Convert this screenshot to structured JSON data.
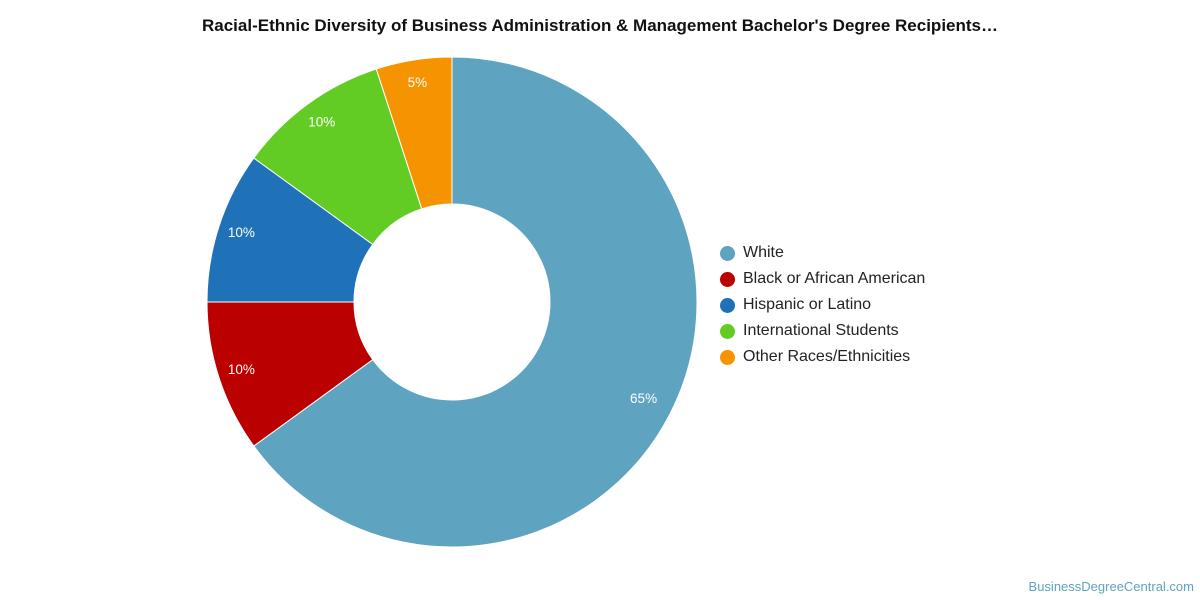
{
  "chart_data": {
    "type": "pie",
    "donut": true,
    "title": "Racial-Ethnic Diversity of Business Administration & Management Bachelor's Degree Recipients…",
    "categories": [
      "White",
      "Black or African American",
      "Hispanic or Latino",
      "International Students",
      "Other Races/Ethnicities"
    ],
    "values": [
      65,
      10,
      10,
      10,
      5
    ],
    "value_labels": [
      "65%",
      "10%",
      "10%",
      "10%",
      "5%"
    ],
    "colors": [
      "#5ea3bf",
      "#bb0000",
      "#1f72b8",
      "#62cc25",
      "#f59300"
    ],
    "legend_position": "right"
  },
  "credit": "BusinessDegreeCentral.com"
}
